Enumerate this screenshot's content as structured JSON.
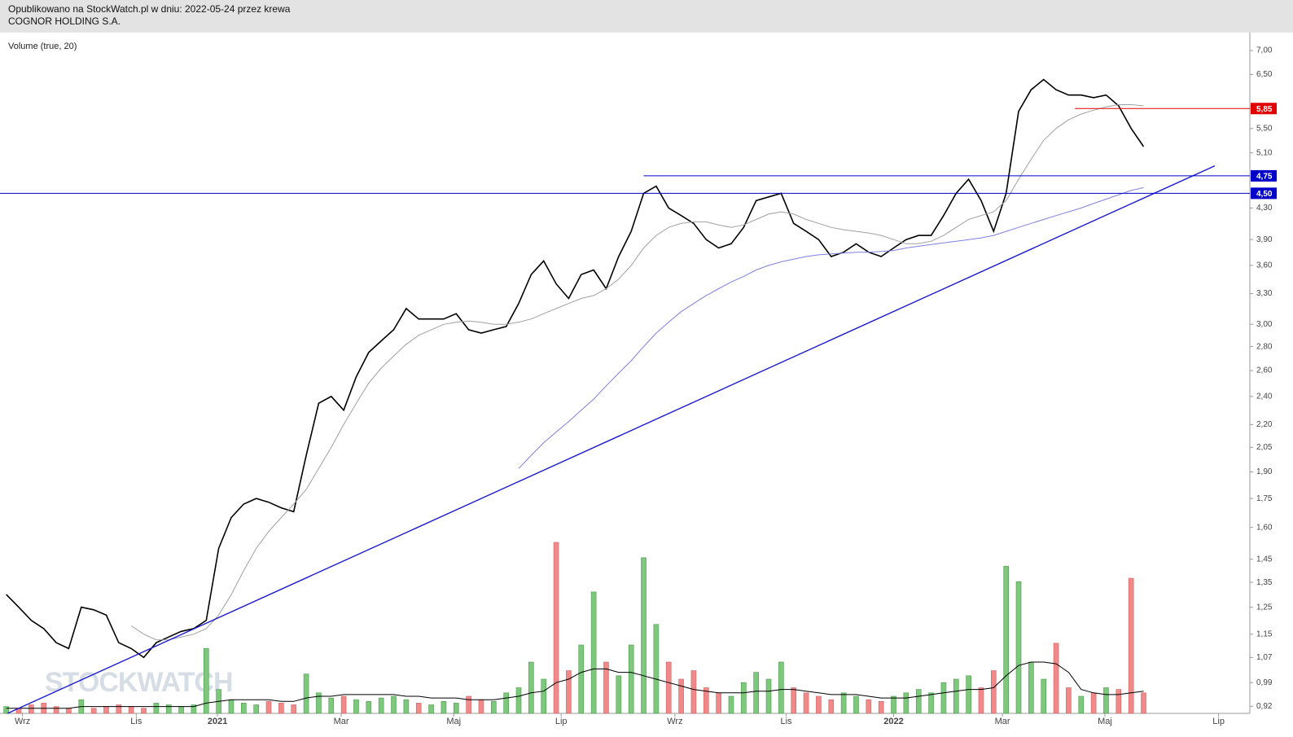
{
  "chart_data": {
    "type": "line",
    "title": "Opublikowano na StockWatch.pl w dniu: 2022-05-24 przez krewa",
    "subtitle": "COGNOR HOLDING S.A.",
    "indicator_label": "Volume (true, 20)",
    "watermark": "STOCKWATCH",
    "log_scale": true,
    "xlim": [
      0,
      100
    ],
    "xticks": [
      {
        "value": 1.8,
        "label": "Wrz"
      },
      {
        "value": 10.9,
        "label": "Lis"
      },
      {
        "value": 17.4,
        "label": "2021"
      },
      {
        "value": 27.3,
        "label": "Mar"
      },
      {
        "value": 36.3,
        "label": "Maj"
      },
      {
        "value": 44.9,
        "label": "Lip"
      },
      {
        "value": 54.0,
        "label": "Wrz"
      },
      {
        "value": 62.9,
        "label": "Lis"
      },
      {
        "value": 71.5,
        "label": "2022"
      },
      {
        "value": 80.2,
        "label": "Mar"
      },
      {
        "value": 88.4,
        "label": "Maj"
      },
      {
        "value": 97.5,
        "label": "Lip"
      }
    ],
    "ylim": [
      0.9,
      7.4
    ],
    "yticks": [
      {
        "value": 7,
        "label": "7,00"
      },
      {
        "value": 6.5,
        "label": "6,50"
      },
      {
        "value": 5.5,
        "label": "5,50"
      },
      {
        "value": 5.1,
        "label": "5,10"
      },
      {
        "value": 4.3,
        "label": "4,30"
      },
      {
        "value": 3.9,
        "label": "3,90"
      },
      {
        "value": 3.6,
        "label": "3,60"
      },
      {
        "value": 3.3,
        "label": "3,30"
      },
      {
        "value": 3,
        "label": "3,00"
      },
      {
        "value": 2.8,
        "label": "2,80"
      },
      {
        "value": 2.6,
        "label": "2,60"
      },
      {
        "value": 2.4,
        "label": "2,40"
      },
      {
        "value": 2.2,
        "label": "2,20"
      },
      {
        "value": 2.05,
        "label": "2,05"
      },
      {
        "value": 1.9,
        "label": "1,90"
      },
      {
        "value": 1.75,
        "label": "1,75"
      },
      {
        "value": 1.6,
        "label": "1,60"
      },
      {
        "value": 1.45,
        "label": "1,45"
      },
      {
        "value": 1.35,
        "label": "1,35"
      },
      {
        "value": 1.25,
        "label": "1,25"
      },
      {
        "value": 1.15,
        "label": "1,15"
      },
      {
        "value": 1.07,
        "label": "1,07"
      },
      {
        "value": 0.99,
        "label": "0,99"
      },
      {
        "value": 0.92,
        "label": "0,92"
      }
    ],
    "y2lim": [
      0,
      100
    ],
    "series": [
      {
        "name": "Close",
        "color": "#000000",
        "values": [
          1.3,
          1.25,
          1.2,
          1.17,
          1.12,
          1.1,
          1.25,
          1.24,
          1.22,
          1.12,
          1.1,
          1.07,
          1.12,
          1.14,
          1.16,
          1.17,
          1.2,
          1.5,
          1.65,
          1.72,
          1.75,
          1.73,
          1.7,
          1.68,
          2.0,
          2.35,
          2.4,
          2.3,
          2.55,
          2.75,
          2.85,
          2.95,
          3.15,
          3.05,
          3.05,
          3.05,
          3.1,
          2.95,
          2.92,
          2.95,
          2.98,
          3.2,
          3.5,
          3.65,
          3.4,
          3.25,
          3.5,
          3.55,
          3.35,
          3.7,
          4.0,
          4.5,
          4.6,
          4.3,
          4.2,
          4.1,
          3.9,
          3.8,
          3.85,
          4.05,
          4.4,
          4.45,
          4.5,
          4.1,
          4.0,
          3.9,
          3.7,
          3.75,
          3.85,
          3.75,
          3.7,
          3.8,
          3.9,
          3.95,
          3.95,
          4.2,
          4.5,
          4.7,
          4.4,
          4.0,
          4.5,
          5.8,
          6.2,
          6.4,
          6.2,
          6.1,
          6.1,
          6.05,
          6.1,
          5.9,
          5.5,
          5.2
        ]
      },
      {
        "name": "MA short",
        "color": "#a0a0a0",
        "values": [
          null,
          null,
          null,
          null,
          null,
          null,
          null,
          null,
          null,
          null,
          1.18,
          1.15,
          1.13,
          1.13,
          1.14,
          1.15,
          1.17,
          1.22,
          1.3,
          1.4,
          1.5,
          1.58,
          1.65,
          1.72,
          1.8,
          1.92,
          2.05,
          2.2,
          2.35,
          2.5,
          2.62,
          2.72,
          2.82,
          2.9,
          2.95,
          3.0,
          3.02,
          3.03,
          3.02,
          3.0,
          3.0,
          3.02,
          3.05,
          3.1,
          3.15,
          3.2,
          3.25,
          3.28,
          3.35,
          3.45,
          3.6,
          3.8,
          3.95,
          4.05,
          4.1,
          4.12,
          4.12,
          4.08,
          4.05,
          4.08,
          4.15,
          4.22,
          4.25,
          4.22,
          4.15,
          4.1,
          4.05,
          4.02,
          4.0,
          3.98,
          3.95,
          3.9,
          3.85,
          3.85,
          3.88,
          3.95,
          4.05,
          4.15,
          4.2,
          4.25,
          4.4,
          4.7,
          5.0,
          5.3,
          5.5,
          5.65,
          5.75,
          5.82,
          5.88,
          5.92,
          5.92,
          5.9
        ]
      },
      {
        "name": "MA long",
        "color": "#8080e0",
        "values": [
          null,
          null,
          null,
          null,
          null,
          null,
          null,
          null,
          null,
          null,
          null,
          null,
          null,
          null,
          null,
          null,
          null,
          null,
          null,
          null,
          null,
          null,
          null,
          null,
          null,
          null,
          null,
          null,
          null,
          null,
          null,
          null,
          null,
          null,
          null,
          null,
          null,
          null,
          null,
          null,
          null,
          1.92,
          2.0,
          2.08,
          2.15,
          2.22,
          2.3,
          2.38,
          2.48,
          2.58,
          2.68,
          2.8,
          2.92,
          3.02,
          3.12,
          3.2,
          3.28,
          3.35,
          3.42,
          3.48,
          3.55,
          3.6,
          3.64,
          3.67,
          3.7,
          3.72,
          3.73,
          3.74,
          3.75,
          3.75,
          3.76,
          3.77,
          3.8,
          3.82,
          3.84,
          3.86,
          3.88,
          3.9,
          3.92,
          3.95,
          4.0,
          4.05,
          4.1,
          4.15,
          4.2,
          4.25,
          4.3,
          4.36,
          4.42,
          4.48,
          4.54,
          4.58
        ]
      },
      {
        "name": "Volume",
        "axis": "y2",
        "type": "bar",
        "up_color": "#7ec87e",
        "down_color": "#f08a8a",
        "values": [
          4,
          3,
          5,
          6,
          4,
          3,
          8,
          3,
          4,
          5,
          4,
          3,
          6,
          5,
          4,
          5,
          38,
          14,
          8,
          6,
          5,
          7,
          6,
          5,
          23,
          12,
          9,
          10,
          8,
          7,
          9,
          10,
          8,
          6,
          5,
          7,
          6,
          10,
          8,
          7,
          12,
          15,
          30,
          20,
          100,
          25,
          40,
          71,
          30,
          22,
          40,
          91,
          52,
          30,
          20,
          25,
          15,
          12,
          10,
          18,
          24,
          20,
          30,
          15,
          12,
          10,
          8,
          12,
          10,
          8,
          7,
          10,
          12,
          14,
          12,
          18,
          20,
          22,
          15,
          25,
          86,
          77,
          30,
          20,
          41,
          15,
          10,
          12,
          15,
          14,
          79,
          12
        ]
      },
      {
        "name": "Volume MA",
        "axis": "y2",
        "color": "#000000",
        "values": [
          3,
          3,
          3,
          3,
          3,
          3,
          4,
          4,
          4,
          4,
          4,
          4,
          4,
          4,
          4,
          4,
          6,
          7,
          8,
          8,
          8,
          8,
          7,
          7,
          9,
          10,
          10,
          11,
          11,
          11,
          11,
          11,
          10,
          10,
          9,
          9,
          9,
          8,
          8,
          8,
          9,
          10,
          12,
          13,
          18,
          20,
          24,
          26,
          26,
          24,
          24,
          22,
          20,
          18,
          16,
          14,
          13,
          12,
          12,
          12,
          13,
          13,
          14,
          14,
          13,
          12,
          11,
          11,
          11,
          10,
          9,
          9,
          9,
          10,
          11,
          12,
          13,
          14,
          14,
          15,
          22,
          28,
          30,
          30,
          29,
          24,
          14,
          12,
          11,
          11,
          12,
          13
        ]
      }
    ],
    "trendline": {
      "color": "#1a1ad0",
      "x": [
        0.6,
        97.2
      ],
      "values": [
        0.9,
        4.9
      ]
    },
    "hlines": [
      {
        "value": 5.85,
        "label": "5,85",
        "color": "#e00000",
        "start": 86
      },
      {
        "value": 4.75,
        "label": "4,75",
        "color": "#0000c8",
        "start": 51.5
      },
      {
        "value": 4.5,
        "label": "4,50",
        "color": "#0000c8",
        "start": 0
      }
    ]
  }
}
